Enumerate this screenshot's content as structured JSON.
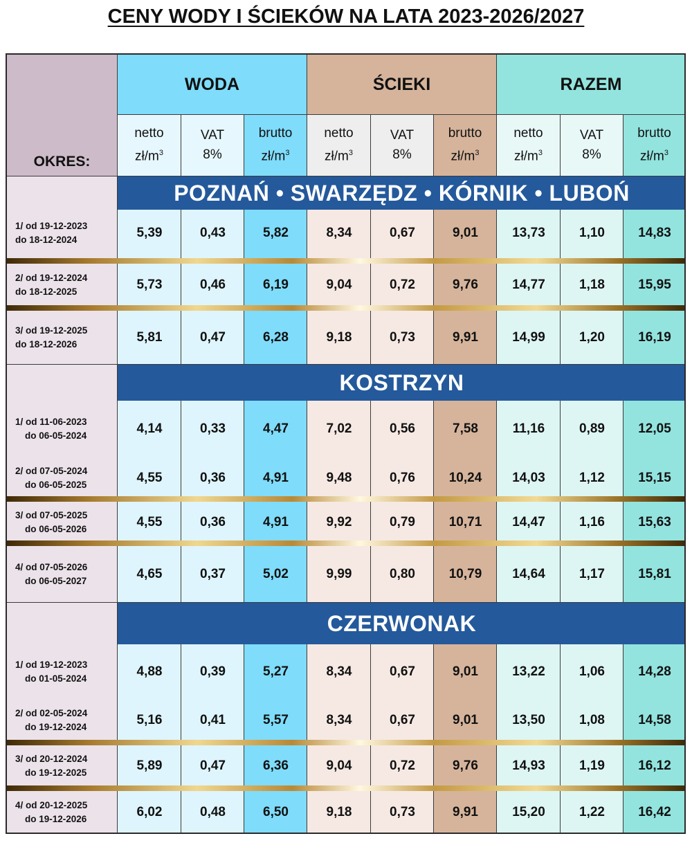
{
  "title": "CENY WODY I ŚCIEKÓW NA LATA 2023-2026/2027",
  "header": {
    "okres": "OKRES:",
    "groups": [
      "WODA",
      "ŚCIEKI",
      "RAZEM"
    ],
    "sub": [
      {
        "l1": "netto",
        "l2": "zł/m",
        "sup": "3"
      },
      {
        "l1": "VAT",
        "l2": "8%",
        "sup": ""
      },
      {
        "l1": "brutto",
        "l2": "zł/m",
        "sup": "3"
      },
      {
        "l1": "netto",
        "l2": "zł/m",
        "sup": "3"
      },
      {
        "l1": "VAT",
        "l2": "8%",
        "sup": ""
      },
      {
        "l1": "brutto",
        "l2": "zł/m",
        "sup": "3"
      },
      {
        "l1": "netto",
        "l2": "zł/m",
        "sup": "3"
      },
      {
        "l1": "VAT",
        "l2": "8%",
        "sup": ""
      },
      {
        "l1": "brutto",
        "l2": "zł/m",
        "sup": "3"
      }
    ]
  },
  "colors": {
    "header_okres": "#cdbbc9",
    "header_woda": "#7fdcfb",
    "header_scieki": "#d5b49b",
    "header_razem": "#93e4df",
    "band": "#245a9c",
    "period_bg": "#ece3ea"
  },
  "sections": [
    {
      "name": "POZNAŃ • SWARZĘDZ • KÓRNIK • LUBOŃ",
      "rows": [
        {
          "l1": "1/ od  19-12-2023",
          "l2": "do 18-12-2024",
          "v": [
            "5,39",
            "0,43",
            "5,82",
            "8,34",
            "0,67",
            "9,01",
            "13,73",
            "1,10",
            "14,83"
          ]
        },
        {
          "l1": "2/ od  19-12-2024",
          "l2": "do  18-12-2025",
          "v": [
            "5,73",
            "0,46",
            "6,19",
            "9,04",
            "0,72",
            "9,76",
            "14,77",
            "1,18",
            "15,95"
          ]
        },
        {
          "l1": "3/ od  19-12-2025",
          "l2": "do 18-12-2026",
          "v": [
            "5,81",
            "0,47",
            "6,28",
            "9,18",
            "0,73",
            "9,91",
            "14,99",
            "1,20",
            "16,19"
          ]
        }
      ]
    },
    {
      "name": "KOSTRZYN",
      "rows": [
        {
          "l1": "1/ od 11-06-2023",
          "l2": "do 06-05-2024",
          "v": [
            "4,14",
            "0,33",
            "4,47",
            "7,02",
            "0,56",
            "7,58",
            "11,16",
            "0,89",
            "12,05"
          ]
        },
        {
          "l1": "2/ od 07-05-2024",
          "l2": "do 06-05-2025",
          "v": [
            "4,55",
            "0,36",
            "4,91",
            "9,48",
            "0,76",
            "10,24",
            "14,03",
            "1,12",
            "15,15"
          ]
        },
        {
          "l1": "3/ od 07-05-2025",
          "l2": "do 06-05-2026",
          "v": [
            "4,55",
            "0,36",
            "4,91",
            "9,92",
            "0,79",
            "10,71",
            "14,47",
            "1,16",
            "15,63"
          ]
        },
        {
          "l1": "4/ od 07-05-2026",
          "l2": "do 06-05-2027",
          "v": [
            "4,65",
            "0,37",
            "5,02",
            "9,99",
            "0,80",
            "10,79",
            "14,64",
            "1,17",
            "15,81"
          ]
        }
      ]
    },
    {
      "name": "CZERWONAK",
      "rows": [
        {
          "l1": "1/ od 19-12-2023",
          "l2": "do 01-05-2024",
          "v": [
            "4,88",
            "0,39",
            "5,27",
            "8,34",
            "0,67",
            "9,01",
            "13,22",
            "1,06",
            "14,28"
          ]
        },
        {
          "l1": "2/ od 02-05-2024",
          "l2": "do 19-12-2024",
          "v": [
            "5,16",
            "0,41",
            "5,57",
            "8,34",
            "0,67",
            "9,01",
            "13,50",
            "1,08",
            "14,58"
          ]
        },
        {
          "l1": "3/ od 20-12-2024",
          "l2": "do 19-12-2025",
          "v": [
            "5,89",
            "0,47",
            "6,36",
            "9,04",
            "0,72",
            "9,76",
            "14,93",
            "1,19",
            "16,12"
          ]
        },
        {
          "l1": "4/ od 20-12-2025",
          "l2": "do 19-12-2026",
          "v": [
            "6,02",
            "0,48",
            "6,50",
            "9,18",
            "0,73",
            "9,91",
            "15,20",
            "1,22",
            "16,42"
          ]
        }
      ]
    }
  ]
}
